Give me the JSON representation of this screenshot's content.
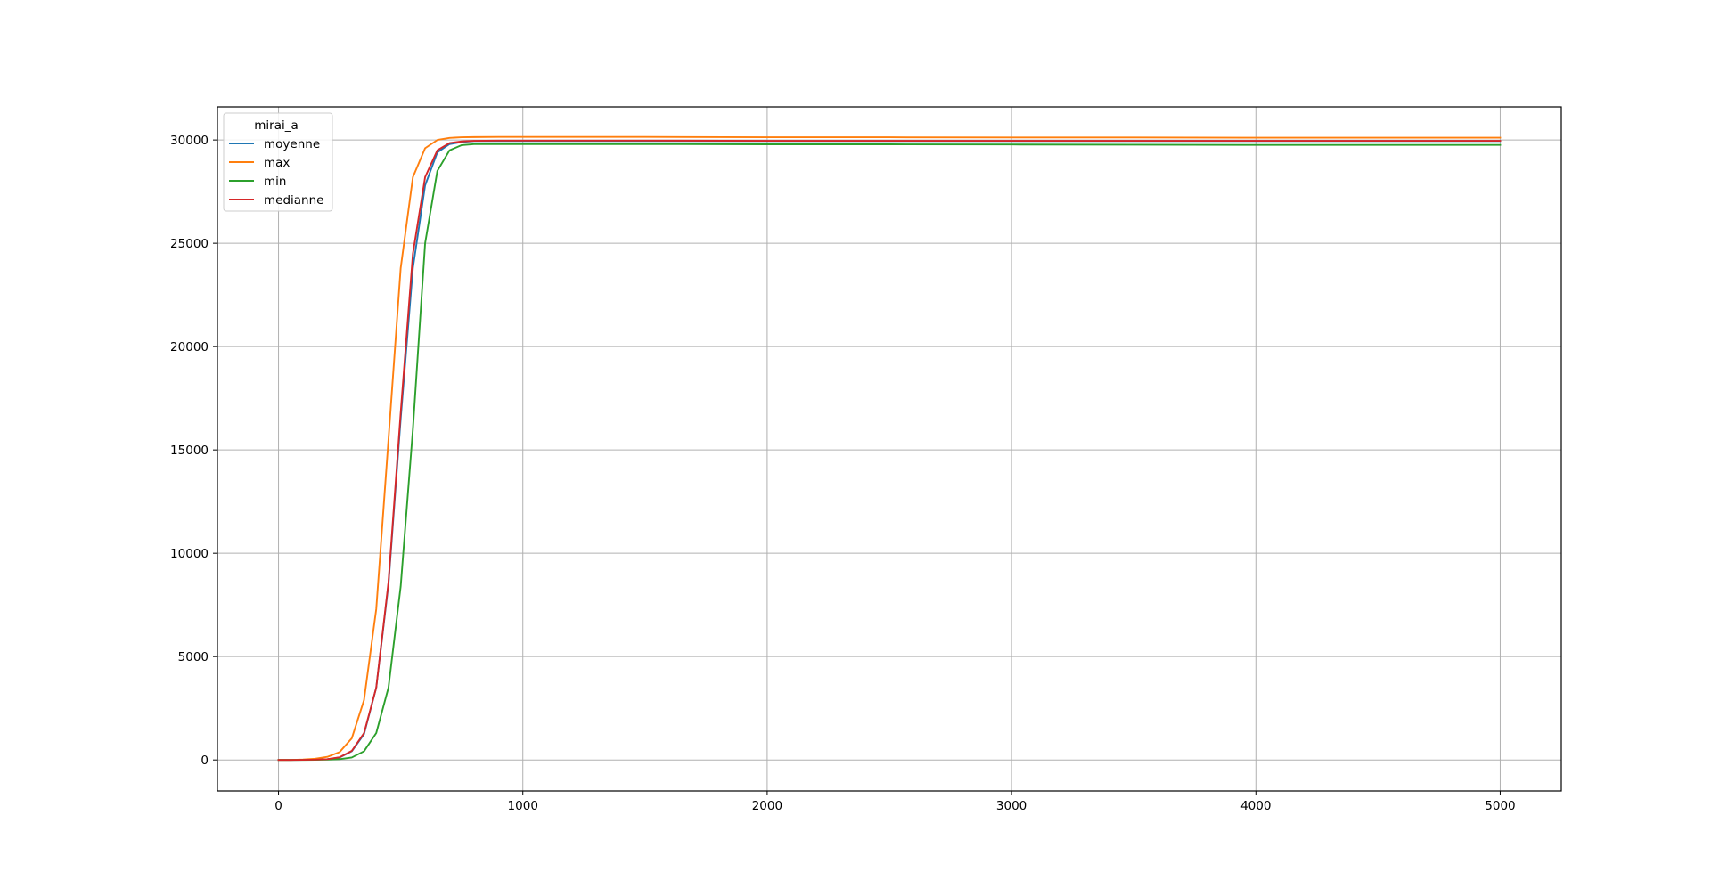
{
  "chart_data": {
    "type": "line",
    "legend": {
      "title": "mirai_a",
      "position": "upper-left"
    },
    "grid": true,
    "xlim": [
      -250,
      5250
    ],
    "ylim": [
      -1500,
      31600
    ],
    "xticks": [
      0,
      1000,
      2000,
      3000,
      4000,
      5000
    ],
    "yticks": [
      0,
      5000,
      10000,
      15000,
      20000,
      25000,
      30000
    ],
    "xtick_labels": [
      "0",
      "1000",
      "2000",
      "3000",
      "4000",
      "5000"
    ],
    "ytick_labels": [
      "0",
      "5000",
      "10000",
      "15000",
      "20000",
      "25000",
      "30000"
    ],
    "x": [
      0,
      50,
      100,
      150,
      200,
      250,
      300,
      350,
      400,
      450,
      500,
      550,
      600,
      650,
      700,
      750,
      800,
      900,
      1000,
      1500,
      2000,
      2500,
      3000,
      3500,
      4000,
      4500,
      5000
    ],
    "series": [
      {
        "name": "moyenne",
        "color": "#1f77b4",
        "values": [
          0,
          0,
          5,
          15,
          40,
          120,
          420,
          1250,
          3500,
          8500,
          16500,
          23800,
          27800,
          29400,
          29800,
          29900,
          29950,
          29950,
          29950,
          29950,
          29950,
          29950,
          29950,
          29950,
          29950,
          29950,
          29950
        ]
      },
      {
        "name": "max",
        "color": "#ff7f0e",
        "values": [
          0,
          0,
          20,
          60,
          150,
          380,
          1050,
          2900,
          7300,
          15500,
          23800,
          28200,
          29600,
          30000,
          30100,
          30130,
          30140,
          30150,
          30150,
          30150,
          30130,
          30130,
          30120,
          30120,
          30110,
          30110,
          30110
        ]
      },
      {
        "name": "min",
        "color": "#2ca02c",
        "values": [
          0,
          0,
          0,
          5,
          15,
          40,
          120,
          420,
          1300,
          3500,
          8400,
          16000,
          25000,
          28500,
          29500,
          29750,
          29800,
          29800,
          29800,
          29800,
          29790,
          29790,
          29780,
          29770,
          29760,
          29760,
          29760
        ]
      },
      {
        "name": "medianne",
        "color": "#d62728",
        "values": [
          0,
          0,
          5,
          15,
          40,
          130,
          440,
          1300,
          3500,
          8600,
          16800,
          24500,
          28200,
          29500,
          29850,
          29930,
          29960,
          29970,
          29970,
          29970,
          29960,
          29960,
          29960,
          29960,
          29960,
          29960,
          29960
        ]
      }
    ]
  }
}
